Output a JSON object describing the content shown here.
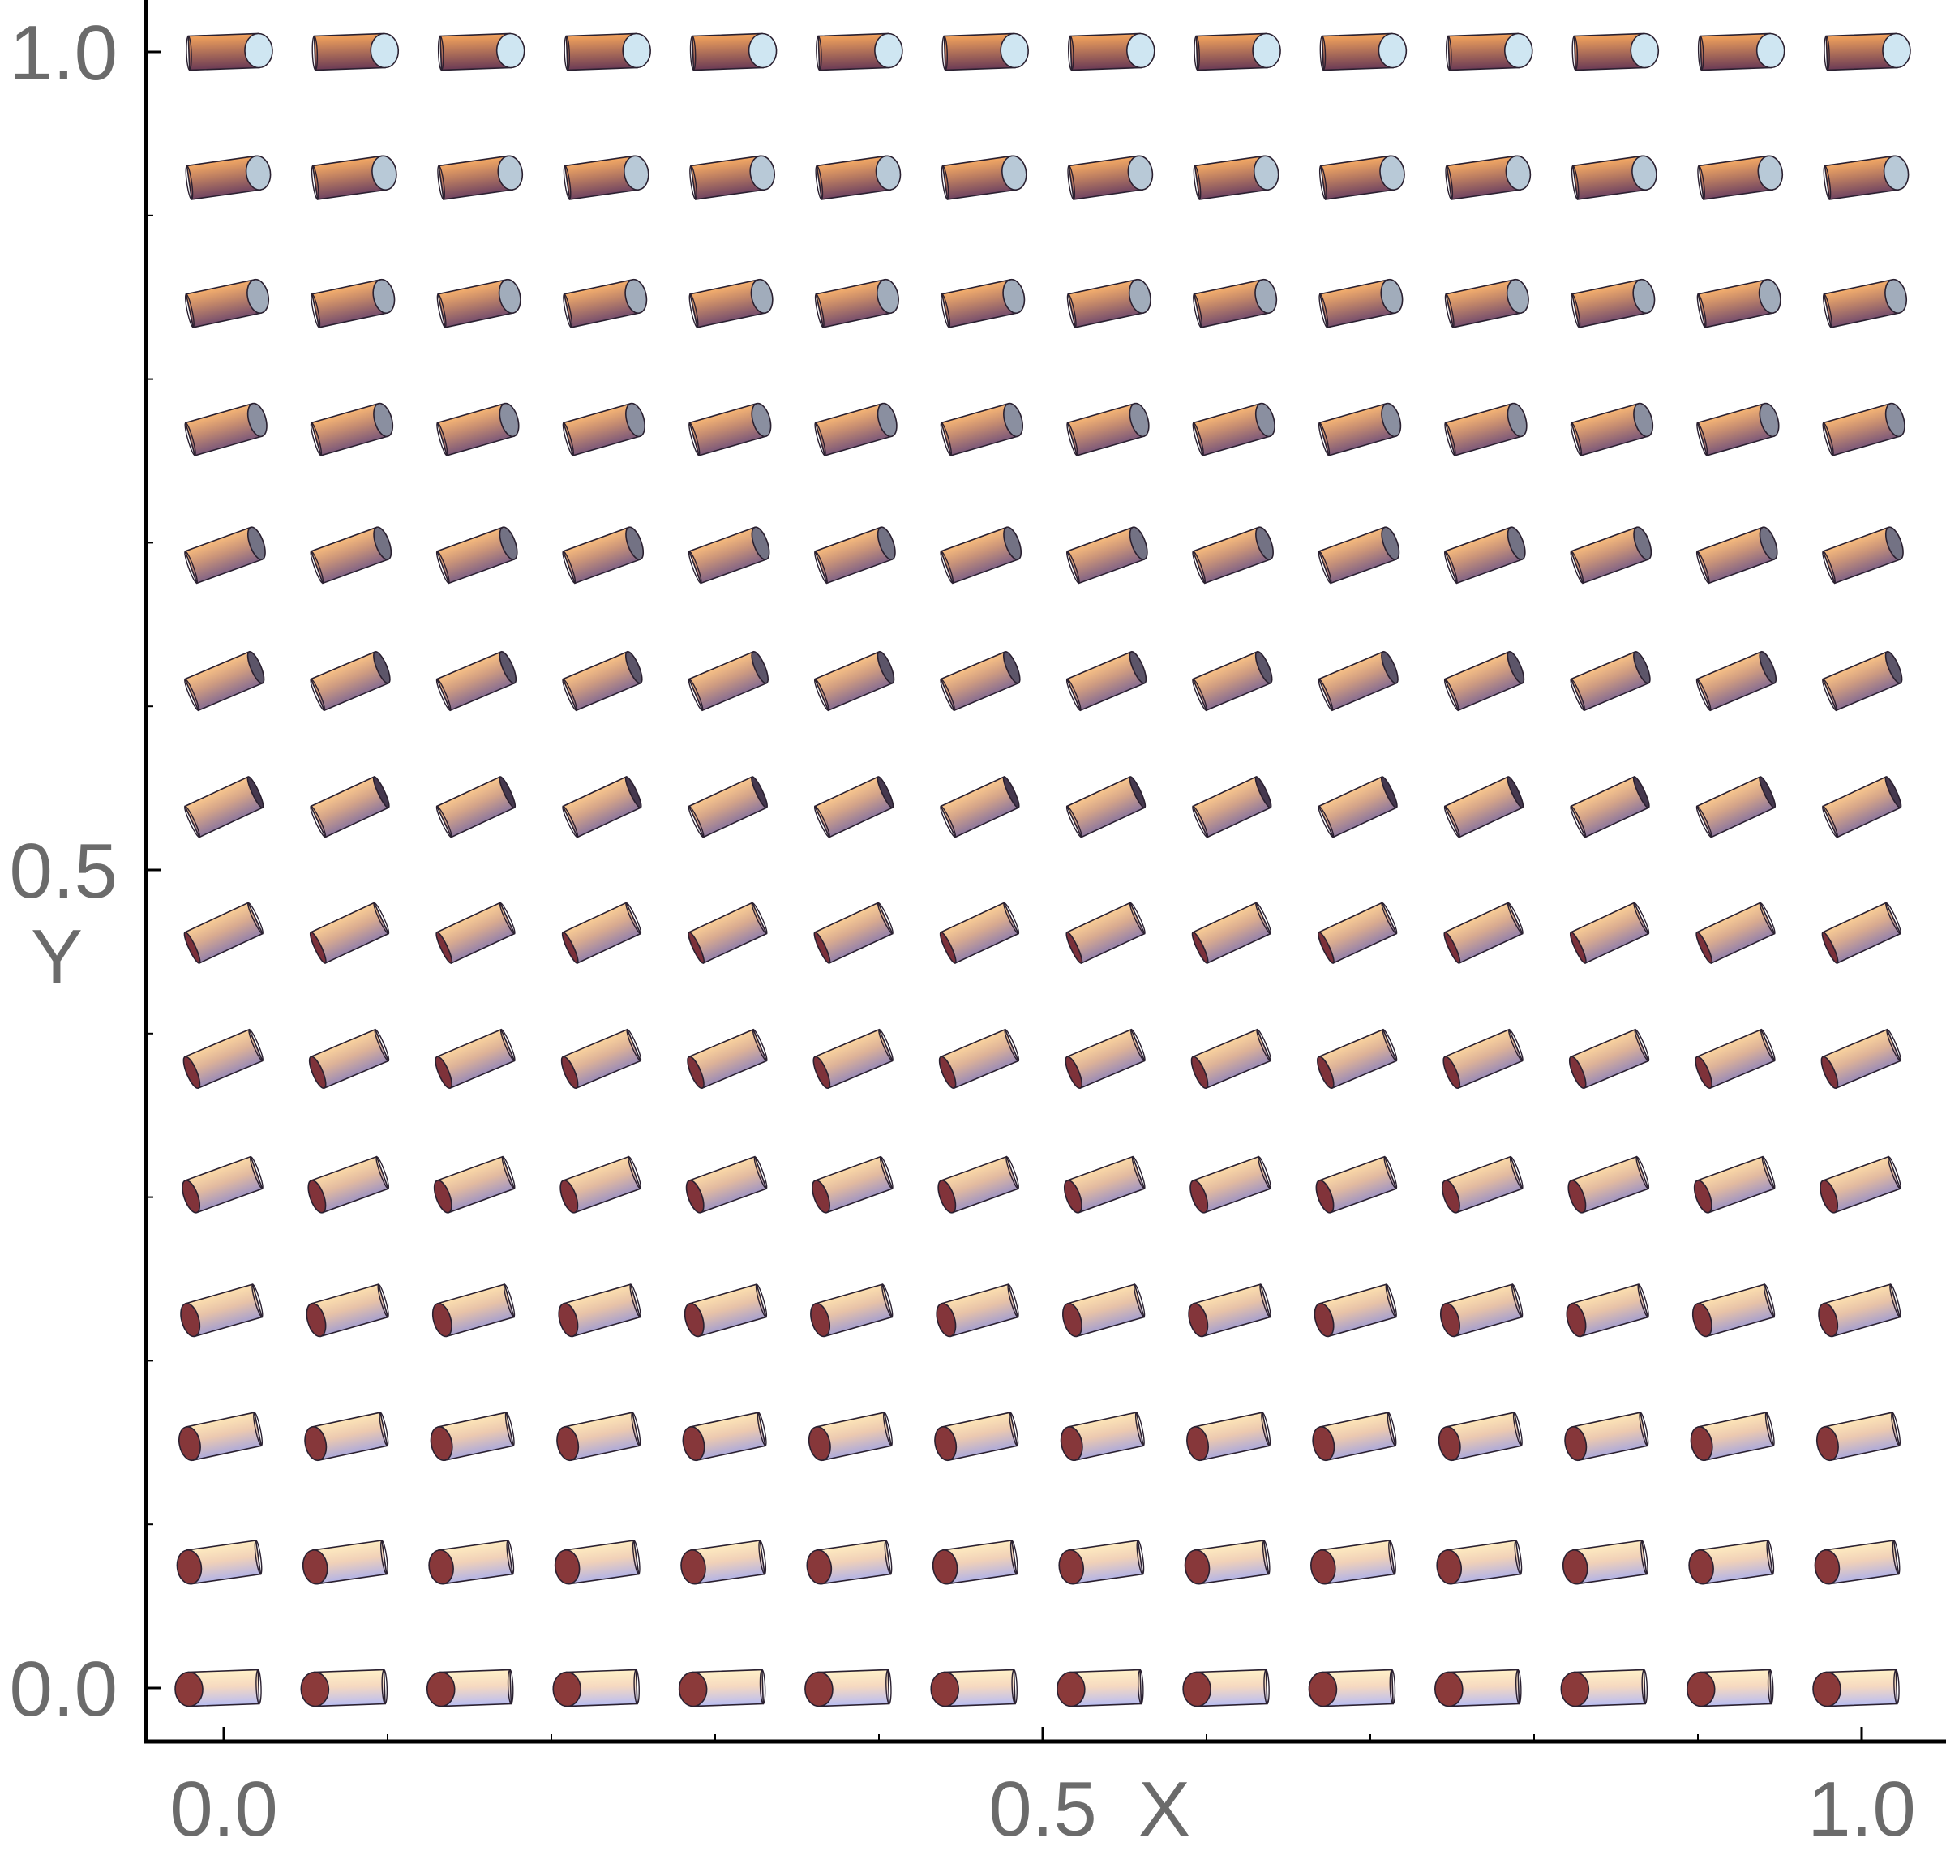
{
  "chart_data": {
    "type": "scatter",
    "marker": "cylinder",
    "title": "",
    "xlabel": "X",
    "ylabel": "Y",
    "xlim": [
      -0.05,
      1.05
    ],
    "ylim": [
      -0.03,
      1.03
    ],
    "grid": false,
    "x_ticks": [
      {
        "value": 0.0,
        "label": "0.0"
      },
      {
        "value": 0.5,
        "label": "0.5"
      },
      {
        "value": 1.0,
        "label": "1.0"
      }
    ],
    "y_ticks": [
      {
        "value": 0.0,
        "label": "0.0"
      },
      {
        "value": 0.5,
        "label": "0.5"
      },
      {
        "value": 1.0,
        "label": "1.0"
      }
    ],
    "x": [
      0.0,
      0.0769,
      0.1538,
      0.2308,
      0.3077,
      0.3846,
      0.4615,
      0.5385,
      0.6154,
      0.6923,
      0.7692,
      0.8462,
      0.9231,
      1.0
    ],
    "y": [
      0.0,
      0.0769,
      0.1538,
      0.2308,
      0.3077,
      0.3846,
      0.4615,
      0.5385,
      0.6154,
      0.6923,
      0.7692,
      0.8462,
      0.9231,
      1.0
    ],
    "tilt_deg_by_row": [
      2,
      8,
      12,
      16,
      20,
      23,
      25,
      25,
      23,
      20,
      16,
      12,
      8,
      2
    ],
    "colors": {
      "end_cap_bottom": "#8b3a3a",
      "end_cap_top": "#cfe6f2",
      "body_warm": "#f3a35c",
      "body_cool": "#b9bef2",
      "body_dark": "#6a3a55",
      "axis": "#000000",
      "tick_text": "#6b6b6b"
    }
  }
}
